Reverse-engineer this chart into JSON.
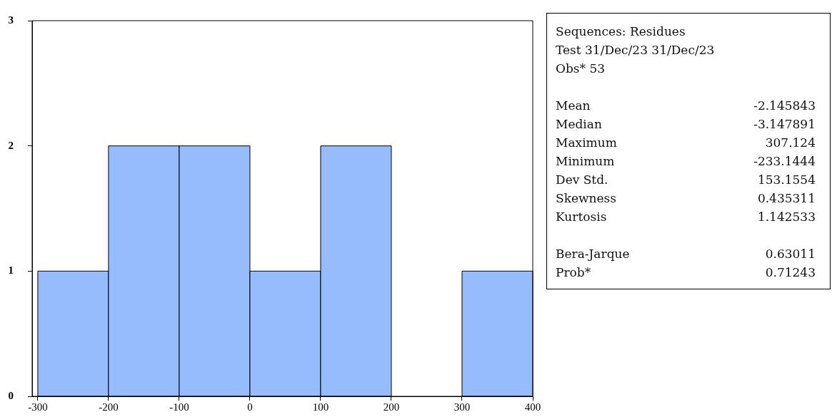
{
  "chart_data": [
    {
      "type": "histogram",
      "bins": [
        -300,
        -200,
        -100,
        0,
        100,
        200,
        300,
        400
      ],
      "values": [
        1,
        2,
        2,
        1,
        2,
        0,
        1
      ],
      "color": "#97bcfd",
      "xlim": [
        -308,
        400
      ],
      "xticks": [
        -300,
        -200,
        -100,
        0,
        100,
        200,
        300,
        400
      ],
      "ylim": [
        0,
        3
      ],
      "yticks": [
        0,
        1,
        2,
        3
      ],
      "grid": false,
      "legend": false
    },
    {
      "type": "other",
      "annotations": [
        "Sequences: Residues",
        "Test 31/Dec/23 31/Dec/23",
        "Obs* 53"
      ],
      "categories": [
        "Mean",
        "Median",
        "Maximum",
        "Minimum",
        "Dev Std.",
        "Skewness",
        "Kurtosis",
        null,
        "Bera-Jarque",
        "Prob*"
      ],
      "value_labels": [
        "-2.145843",
        "-3.147891",
        "307.124",
        "-233.1444",
        "153.1554",
        "0.435311",
        "1.142533",
        null,
        "0.63011",
        "0.71243"
      ]
    }
  ]
}
